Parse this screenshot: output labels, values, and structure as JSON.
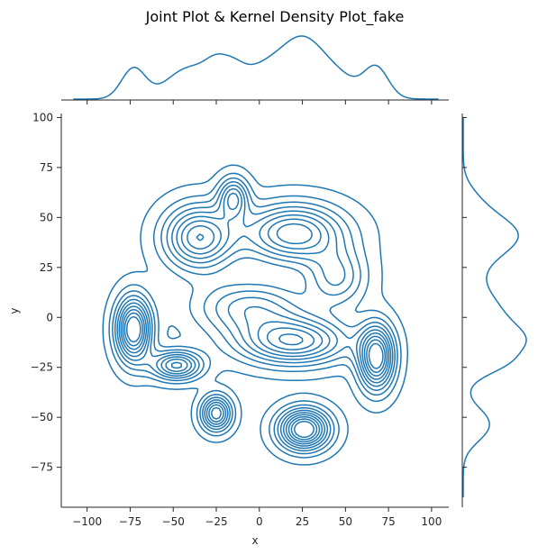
{
  "chart_data": {
    "type": "kde-jointplot",
    "title": "Joint Plot & Kernel Density Plot_fake",
    "xlabel": "x",
    "ylabel": "y",
    "xlim": [
      -115,
      110
    ],
    "ylim": [
      -95,
      102
    ],
    "x_ticks": [
      -100,
      -75,
      -50,
      -25,
      0,
      25,
      50,
      75,
      100
    ],
    "y_ticks": [
      -75,
      -50,
      -25,
      0,
      25,
      50,
      75,
      100
    ],
    "grid": false,
    "line_color": "#1f77b4",
    "clusters": [
      {
        "x": -73,
        "y": -6,
        "sx": 7,
        "sy": 11,
        "w": 1.0
      },
      {
        "x": -48,
        "y": -24,
        "sx": 10,
        "sy": 5,
        "w": 0.7
      },
      {
        "x": -25,
        "y": -48,
        "sx": 6,
        "sy": 6,
        "w": 0.75
      },
      {
        "x": 26,
        "y": -56,
        "sx": 10,
        "sy": 7,
        "w": 1.0
      },
      {
        "x": 68,
        "y": -20,
        "sx": 7,
        "sy": 11,
        "w": 0.95
      },
      {
        "x": 20,
        "y": -12,
        "sx": 22,
        "sy": 8,
        "w": 0.75
      },
      {
        "x": -35,
        "y": 40,
        "sx": 14,
        "sy": 11,
        "w": 0.75
      },
      {
        "x": -15,
        "y": 60,
        "sx": 6,
        "sy": 7,
        "w": 0.55
      },
      {
        "x": 20,
        "y": 42,
        "sx": 20,
        "sy": 10,
        "w": 0.75
      },
      {
        "x": -5,
        "y": 5,
        "sx": 22,
        "sy": 9,
        "w": 0.45
      },
      {
        "x": 45,
        "y": 20,
        "sx": 12,
        "sy": 10,
        "w": 0.4
      }
    ],
    "n_contour_levels": 10
  }
}
